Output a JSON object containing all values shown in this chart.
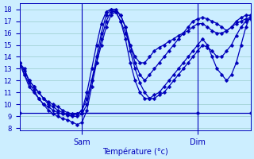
{
  "xlabel": "Température (°c)",
  "ylim": [
    7.8,
    18.5
  ],
  "xlim": [
    0,
    48
  ],
  "yticks": [
    8,
    9,
    10,
    11,
    12,
    13,
    14,
    15,
    16,
    17,
    18
  ],
  "sam_x": 13,
  "dim_x": 37,
  "bg_color": "#cceeff",
  "grid_color": "#99cccc",
  "line_color": "#0000bb",
  "markersize": 2.5,
  "linewidth": 0.9,
  "series": [
    {
      "x": [
        0,
        1,
        2,
        3,
        4,
        5,
        6,
        7,
        8,
        9,
        10,
        11,
        12,
        13,
        14,
        15,
        16,
        17,
        18,
        19,
        20,
        21,
        22,
        23,
        24,
        25,
        26,
        27,
        28,
        29,
        30,
        31,
        32,
        33,
        34,
        35,
        36,
        37,
        38,
        39,
        40,
        41,
        42,
        43,
        44,
        45,
        46,
        47,
        48
      ],
      "y": [
        13.5,
        13.0,
        12.0,
        11.5,
        11.0,
        10.5,
        10.2,
        10.0,
        9.8,
        9.5,
        9.3,
        9.2,
        9.2,
        9.5,
        10.5,
        12.0,
        13.5,
        15.0,
        16.5,
        17.5,
        17.8,
        17.5,
        16.5,
        15.0,
        13.5,
        12.5,
        12.0,
        12.5,
        13.0,
        13.5,
        14.0,
        14.5,
        15.0,
        15.5,
        16.0,
        16.5,
        17.0,
        17.2,
        17.3,
        17.2,
        17.0,
        16.8,
        16.5,
        16.2,
        16.5,
        17.0,
        17.3,
        17.5,
        17.5
      ]
    },
    {
      "x": [
        0,
        1,
        2,
        3,
        4,
        5,
        6,
        7,
        8,
        9,
        10,
        11,
        12,
        13,
        14,
        15,
        16,
        17,
        18,
        19,
        20,
        21,
        22,
        23,
        24,
        25,
        26,
        27,
        28,
        29,
        30,
        31,
        32,
        33,
        34,
        35,
        36,
        37,
        38,
        39,
        40,
        41,
        42,
        43,
        44,
        45,
        46,
        47,
        48
      ],
      "y": [
        13.5,
        12.5,
        11.8,
        11.2,
        10.5,
        10.0,
        9.5,
        9.2,
        9.0,
        8.8,
        8.7,
        8.5,
        8.3,
        8.5,
        9.5,
        11.5,
        13.5,
        15.5,
        17.0,
        17.8,
        17.8,
        17.0,
        15.5,
        13.5,
        12.0,
        11.0,
        10.5,
        10.5,
        10.8,
        11.0,
        11.5,
        12.0,
        12.5,
        13.0,
        13.5,
        14.0,
        14.5,
        15.0,
        15.5,
        15.0,
        14.0,
        13.0,
        12.5,
        12.0,
        12.5,
        13.5,
        15.0,
        16.5,
        17.5
      ]
    },
    {
      "x": [
        0,
        48
      ],
      "y": [
        9.3,
        9.3
      ]
    },
    {
      "x": [
        0,
        1,
        2,
        3,
        4,
        5,
        6,
        7,
        8,
        9,
        10,
        11,
        12,
        13,
        14,
        15,
        16,
        17,
        18,
        19,
        20,
        21,
        22,
        23,
        24,
        25,
        26,
        27,
        28,
        29,
        30,
        31,
        32,
        33,
        34,
        35,
        36,
        37,
        38,
        39,
        40,
        41,
        42,
        43,
        44,
        45,
        46,
        47,
        48
      ],
      "y": [
        13.5,
        12.8,
        12.0,
        11.5,
        11.0,
        10.5,
        10.0,
        9.8,
        9.5,
        9.3,
        9.2,
        9.1,
        9.2,
        9.5,
        11.0,
        13.0,
        15.0,
        16.8,
        17.8,
        18.0,
        17.8,
        17.0,
        16.0,
        15.0,
        14.0,
        13.5,
        13.5,
        14.0,
        14.5,
        14.8,
        15.0,
        15.3,
        15.5,
        15.8,
        16.0,
        16.2,
        16.5,
        16.8,
        16.8,
        16.5,
        16.2,
        16.0,
        16.0,
        16.2,
        16.5,
        16.8,
        17.0,
        17.2,
        17.3
      ]
    },
    {
      "x": [
        0,
        1,
        2,
        3,
        4,
        5,
        6,
        7,
        8,
        9,
        10,
        11,
        12,
        13,
        14,
        15,
        16,
        17,
        18,
        19,
        20,
        21,
        22,
        23,
        24,
        25,
        26,
        27,
        28,
        29,
        30,
        31,
        32,
        33,
        34,
        35,
        36,
        37,
        38,
        39,
        40,
        41,
        42,
        43,
        44,
        45,
        46,
        47,
        48
      ],
      "y": [
        13.5,
        12.5,
        11.5,
        11.0,
        10.5,
        10.0,
        9.8,
        9.5,
        9.3,
        9.2,
        9.1,
        9.0,
        9.0,
        9.2,
        10.0,
        12.0,
        14.0,
        16.0,
        17.5,
        18.0,
        18.0,
        17.5,
        16.5,
        14.5,
        13.0,
        11.8,
        11.0,
        10.5,
        10.5,
        10.8,
        11.0,
        11.5,
        12.0,
        12.5,
        13.0,
        13.5,
        14.0,
        14.5,
        15.0,
        14.8,
        14.5,
        14.0,
        14.0,
        14.5,
        15.0,
        15.8,
        16.5,
        17.0,
        17.2
      ]
    },
    {
      "x": [
        13,
        37
      ],
      "y": [
        9.3,
        9.3
      ]
    }
  ]
}
